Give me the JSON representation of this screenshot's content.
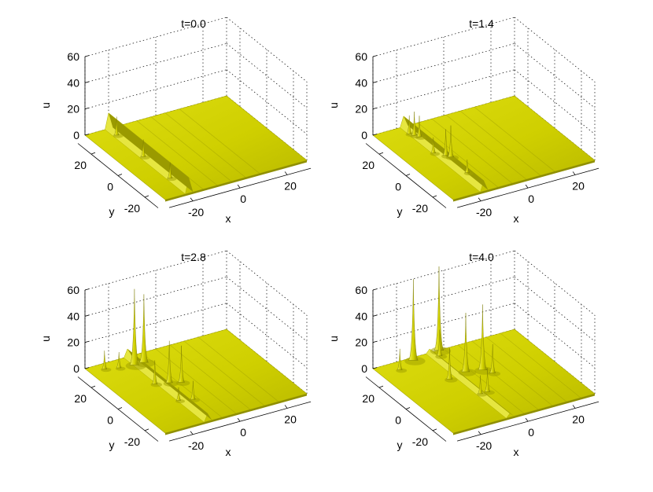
{
  "chart_data": [
    {
      "type": "surface",
      "title": "t=0.0",
      "xlabel": "x",
      "ylabel": "y",
      "zlabel": "u",
      "xlim": [
        -30,
        30
      ],
      "ylim": [
        -30,
        30
      ],
      "zlim": [
        0,
        60
      ],
      "xticks": [
        "-20",
        "0",
        "20"
      ],
      "yticks": [
        "20",
        "0",
        "-20"
      ],
      "zticks": [
        "60",
        "40",
        "20",
        "0"
      ],
      "grid": true,
      "surface_color": "#d2d200",
      "wave": {
        "x_position": -20,
        "peak_u": 12
      },
      "peaks": [
        {
          "x": -20,
          "y": 24,
          "u": 14
        },
        {
          "x": -20,
          "y": 4,
          "u": 13
        },
        {
          "x": -20,
          "y": -16,
          "u": 12
        }
      ]
    },
    {
      "type": "surface",
      "title": "t=1.4",
      "xlabel": "x",
      "ylabel": "y",
      "zlabel": "u",
      "xlim": [
        -30,
        30
      ],
      "ylim": [
        -30,
        30
      ],
      "zlim": [
        0,
        60
      ],
      "xticks": [
        "-20",
        "0",
        "20"
      ],
      "yticks": [
        "20",
        "0",
        "-20"
      ],
      "zticks": [
        "60",
        "40",
        "20",
        "0"
      ],
      "grid": true,
      "surface_color": "#d2d200",
      "wave": {
        "x_position": -17,
        "peak_u": 8
      },
      "peaks": [
        {
          "x": -18,
          "y": 24,
          "u": 14
        },
        {
          "x": -17,
          "y": 22,
          "u": 18
        },
        {
          "x": -16,
          "y": 20,
          "u": 16
        },
        {
          "x": -18,
          "y": 6,
          "u": 12
        },
        {
          "x": -15,
          "y": 2,
          "u": 20
        },
        {
          "x": -14,
          "y": 0,
          "u": 24
        },
        {
          "x": -15,
          "y": -14,
          "u": 10
        }
      ]
    },
    {
      "type": "surface",
      "title": "t=2.8",
      "xlabel": "x",
      "ylabel": "y",
      "zlabel": "u",
      "xlim": [
        -30,
        30
      ],
      "ylim": [
        -30,
        30
      ],
      "zlim": [
        0,
        60
      ],
      "xticks": [
        "-20",
        "0",
        "20"
      ],
      "yticks": [
        "20",
        "0",
        "-20"
      ],
      "zticks": [
        "60",
        "40",
        "20",
        "0"
      ],
      "grid": true,
      "surface_color": "#d2d200",
      "wave": {
        "x_position": -12,
        "peak_u": 6
      },
      "peaks": [
        {
          "x": -24,
          "y": 26,
          "u": 14
        },
        {
          "x": -19,
          "y": 24,
          "u": 12
        },
        {
          "x": -13,
          "y": 23,
          "u": 58
        },
        {
          "x": -9,
          "y": 23,
          "u": 52
        },
        {
          "x": -14,
          "y": 6,
          "u": 18
        },
        {
          "x": -9,
          "y": 4,
          "u": 32
        },
        {
          "x": -5,
          "y": 2,
          "u": 28
        },
        {
          "x": -13,
          "y": -10,
          "u": 10
        },
        {
          "x": -8,
          "y": -12,
          "u": 14
        }
      ]
    },
    {
      "type": "surface",
      "title": "t=4.0",
      "xlabel": "x",
      "ylabel": "y",
      "zlabel": "u",
      "xlim": [
        -30,
        30
      ],
      "ylim": [
        -30,
        30
      ],
      "zlim": [
        0,
        60
      ],
      "xticks": [
        "-20",
        "0",
        "20"
      ],
      "yticks": [
        "20",
        "0",
        "-20"
      ],
      "zticks": [
        "60",
        "40",
        "20",
        "0"
      ],
      "grid": true,
      "surface_color": "#d2d200",
      "wave": {
        "x_position": -6,
        "peak_u": 3
      },
      "peaks": [
        {
          "x": -22,
          "y": 24,
          "u": 16
        },
        {
          "x": -14,
          "y": 28,
          "u": 62
        },
        {
          "x": -2,
          "y": 30,
          "u": 64
        },
        {
          "x": -4,
          "y": 26,
          "u": 20
        },
        {
          "x": -10,
          "y": 8,
          "u": 24
        },
        {
          "x": -2,
          "y": 10,
          "u": 45
        },
        {
          "x": 4,
          "y": 8,
          "u": 50
        },
        {
          "x": 6,
          "y": 4,
          "u": 22
        },
        {
          "x": -6,
          "y": -8,
          "u": 14
        },
        {
          "x": -3,
          "y": -8,
          "u": 18
        }
      ]
    }
  ]
}
